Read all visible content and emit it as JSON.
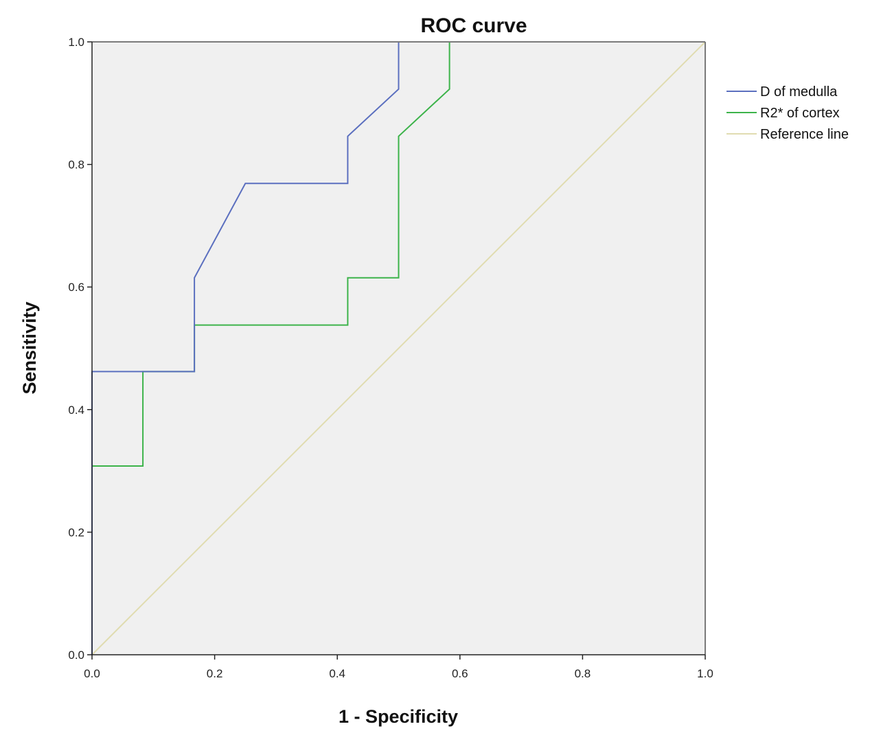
{
  "chart_data": {
    "type": "line",
    "title": "ROC curve",
    "xlabel": "1 - Specificity",
    "ylabel": "Sensitivity",
    "xlim": [
      0.0,
      1.0
    ],
    "ylim": [
      0.0,
      1.0
    ],
    "x_ticks": [
      "0.0",
      "0.2",
      "0.4",
      "0.6",
      "0.8",
      "1.0"
    ],
    "y_ticks": [
      "0.0",
      "0.2",
      "0.4",
      "0.6",
      "0.8",
      "1.0"
    ],
    "grid": false,
    "legend_position": "right",
    "background": "#f0f0f0",
    "series": [
      {
        "name": "D of medulla",
        "color": "#5b6fbf",
        "x": [
          0.0,
          0.0,
          0.167,
          0.167,
          0.25,
          0.417,
          0.417,
          0.5,
          0.5,
          1.0
        ],
        "y": [
          0.0,
          0.462,
          0.462,
          0.615,
          0.769,
          0.769,
          0.846,
          0.923,
          1.0,
          1.0
        ]
      },
      {
        "name": "R2* of cortex",
        "color": "#3cb34a",
        "x": [
          0.0,
          0.0,
          0.083,
          0.083,
          0.167,
          0.167,
          0.417,
          0.417,
          0.5,
          0.5,
          0.583,
          0.583,
          1.0
        ],
        "y": [
          0.0,
          0.308,
          0.308,
          0.462,
          0.462,
          0.538,
          0.538,
          0.615,
          0.615,
          0.846,
          0.923,
          1.0,
          1.0
        ]
      },
      {
        "name": "Reference line",
        "color": "#e0dcb0",
        "x": [
          0.0,
          1.0
        ],
        "y": [
          0.0,
          1.0
        ]
      }
    ]
  }
}
